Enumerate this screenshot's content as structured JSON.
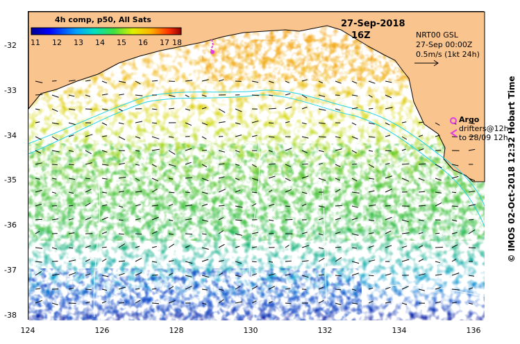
{
  "map": {
    "date": "27-Sep-2018",
    "time": "16Z",
    "colorbar_title": "4h comp, p50, All Sats",
    "colorbar_ticks": [
      "11",
      "12",
      "13",
      "14",
      "15",
      "16",
      "17",
      "18"
    ],
    "current_source": "NRT00 GSL",
    "current_time": "27-Sep 00:00Z",
    "current_scale": "0.5m/s (1kt 24h)",
    "legend_argo": "Argo",
    "legend_drifters": "drifters@12h",
    "legend_drifters_to": "to 28/09 12h",
    "credit": "© IMOS 02-Oct-2018 12:32 Hobart Time",
    "lat_ticks": [
      "-32",
      "-33",
      "-34",
      "-35",
      "-36",
      "-37",
      "-38"
    ],
    "lon_ticks": [
      "124",
      "126",
      "128",
      "130",
      "132",
      "134",
      "136"
    ],
    "colors": {
      "land": "#f9c48e",
      "no_data": "#ffffff",
      "argo": "#e23de2",
      "drifter": "#e23de2"
    }
  }
}
